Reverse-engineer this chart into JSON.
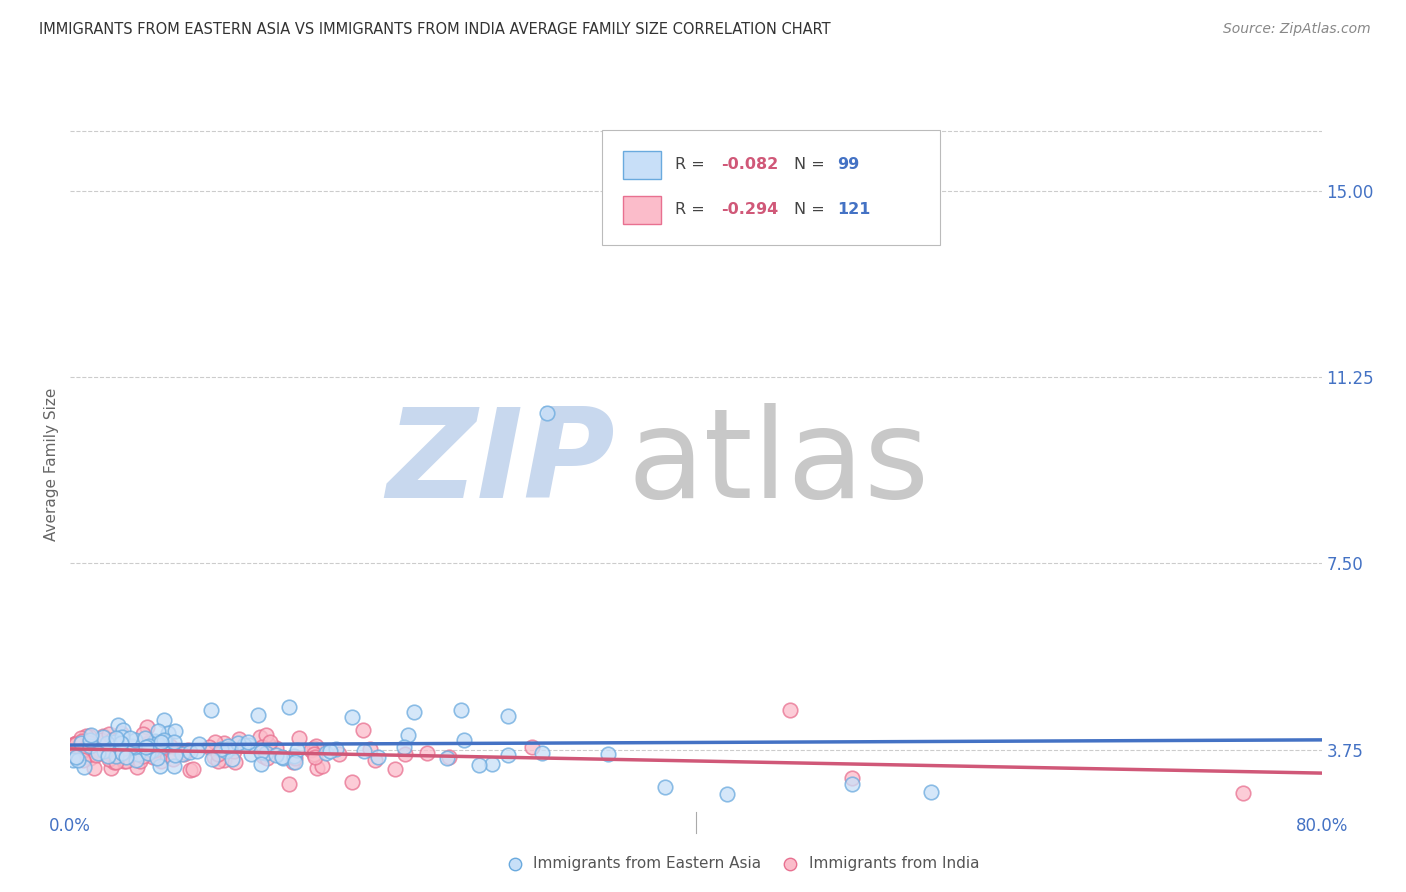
{
  "title": "IMMIGRANTS FROM EASTERN ASIA VS IMMIGRANTS FROM INDIA AVERAGE FAMILY SIZE CORRELATION CHART",
  "source": "Source: ZipAtlas.com",
  "ylabel": "Average Family Size",
  "xmin": 0.0,
  "xmax": 0.8,
  "ymin": 2.5,
  "ymax": 16.5,
  "yticks": [
    3.75,
    7.5,
    11.25,
    15.0
  ],
  "xticks": [
    0.0,
    0.1,
    0.2,
    0.3,
    0.4,
    0.5,
    0.6,
    0.7,
    0.8
  ],
  "R_east_asia": -0.082,
  "N_east_asia": 99,
  "R_india": -0.294,
  "N_india": 121,
  "color_east_asia_face": "#c8dff8",
  "color_east_asia_edge": "#6aaade",
  "color_india_face": "#fbbcca",
  "color_india_edge": "#e87090",
  "line_color_east_asia": "#4472c4",
  "line_color_india": "#d05878",
  "legend_label_east_asia": "Immigrants from Eastern Asia",
  "legend_label_india": "Immigrants from India",
  "watermark_zip": "ZIP",
  "watermark_atlas": "atlas",
  "watermark_color_zip": "#c8d8ee",
  "watermark_color_atlas": "#c8c8c8",
  "background_color": "#ffffff",
  "grid_color": "#cccccc",
  "title_color": "#333333",
  "source_color": "#888888",
  "tick_color": "#4472c4",
  "seed": 7
}
